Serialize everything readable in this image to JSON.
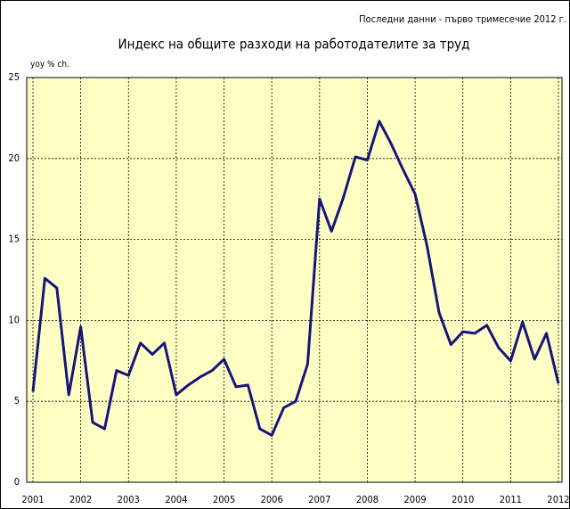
{
  "chart_data": {
    "type": "line",
    "note": "Последни данни - първо  тримесечие 2012 г.",
    "title": "Индекс на общите разходи на работодателите за труд",
    "y_label": "yoy % ch.",
    "x": [
      2001,
      2001.25,
      2001.5,
      2001.75,
      2002,
      2002.25,
      2002.5,
      2002.75,
      2003,
      2003.25,
      2003.5,
      2003.75,
      2004,
      2004.25,
      2004.5,
      2004.75,
      2005,
      2005.25,
      2005.5,
      2005.75,
      2006,
      2006.25,
      2006.5,
      2006.75,
      2007,
      2007.25,
      2007.5,
      2007.75,
      2008,
      2008.25,
      2008.5,
      2008.75,
      2009,
      2009.25,
      2009.5,
      2009.75,
      2010,
      2010.25,
      2010.5,
      2010.75,
      2011,
      2011.25,
      2011.5,
      2011.75,
      2012
    ],
    "series": [
      {
        "name": "yoy",
        "color": "#15157a",
        "values": [
          5.6,
          12.6,
          12.0,
          5.4,
          9.6,
          3.7,
          3.3,
          6.9,
          6.6,
          8.6,
          7.9,
          8.6,
          5.4,
          6.0,
          6.5,
          6.9,
          7.6,
          5.9,
          6.0,
          3.3,
          2.9,
          4.6,
          5.0,
          7.3,
          17.5,
          15.5,
          17.6,
          20.1,
          19.9,
          22.3,
          20.9,
          19.3,
          17.8,
          14.6,
          10.5,
          8.5,
          9.3,
          9.2,
          9.7,
          8.3,
          7.5,
          9.9,
          7.6,
          9.2,
          6.1
        ]
      }
    ],
    "xlim": [
      2001,
      2012
    ],
    "xticks": [
      2001,
      2002,
      2003,
      2004,
      2005,
      2006,
      2007,
      2008,
      2009,
      2010,
      2011,
      2012
    ],
    "ylim": [
      0,
      25
    ],
    "yticks": [
      0,
      5,
      10,
      15,
      20,
      25
    ],
    "grid": true,
    "background": "#ffffc4"
  }
}
